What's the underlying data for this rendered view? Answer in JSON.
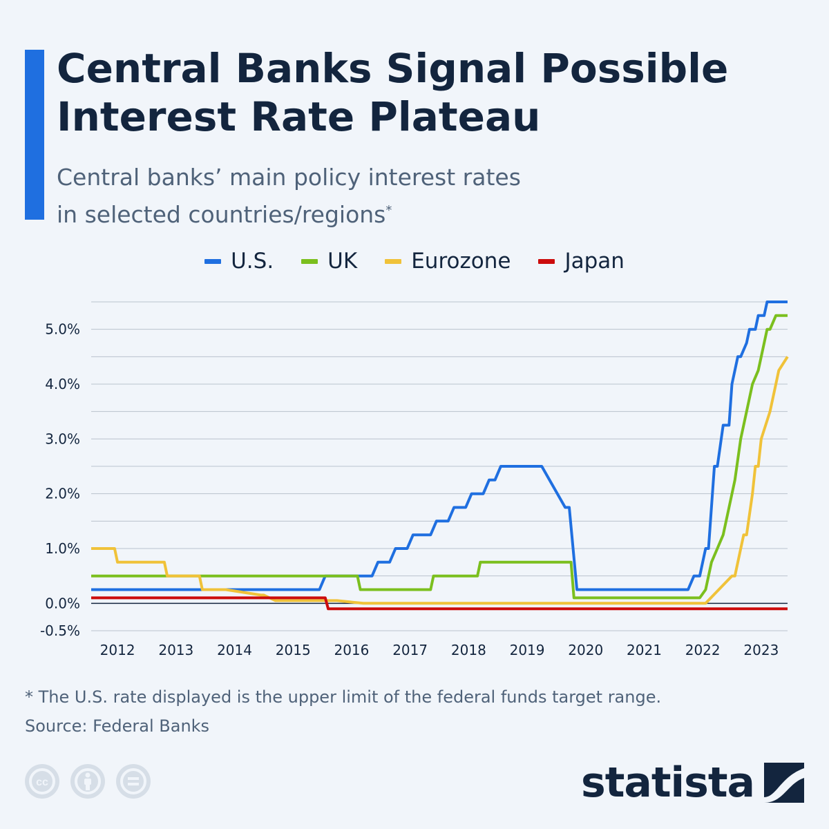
{
  "header": {
    "title": "Central Banks Signal Possible Interest Rate Plateau",
    "subtitle_line1": "Central banks’ main policy interest rates",
    "subtitle_line2": "in selected countries/regions",
    "subtitle_mark": "*"
  },
  "colors": {
    "accent": "#1f6fe0",
    "us": "#1f6fe0",
    "uk": "#7bbf1e",
    "eurozone": "#f0c239",
    "japan": "#cc0c0c",
    "text": "#13253e",
    "background": "#f1f5fa"
  },
  "chart_data": {
    "type": "line",
    "title": "",
    "xlabel": "",
    "ylabel": "",
    "xlim": [
      2011.55,
      2023.45
    ],
    "ylim": [
      -0.5,
      5.5
    ],
    "x_ticks": [
      2012,
      2013,
      2014,
      2015,
      2016,
      2017,
      2018,
      2019,
      2020,
      2021,
      2022,
      2023
    ],
    "x_tick_labels": [
      "2012",
      "2013",
      "2014",
      "2015",
      "2016",
      "2017",
      "2018",
      "2019",
      "2020",
      "2021",
      "2022",
      "2023"
    ],
    "y_ticks": [
      -0.5,
      0,
      1,
      2,
      3,
      4,
      5
    ],
    "y_tick_labels": [
      "-0.5%",
      "0.0%",
      "1.0%",
      "2.0%",
      "3.0%",
      "4.0%",
      "5.0%"
    ],
    "grid": true,
    "legend": "top",
    "series": [
      {
        "name": "U.S.",
        "color": "#1f6fe0",
        "x": [
          2011.55,
          2015.45,
          2015.55,
          2016.35,
          2016.45,
          2016.65,
          2016.75,
          2016.95,
          2017.05,
          2017.35,
          2017.45,
          2017.65,
          2017.75,
          2017.95,
          2018.05,
          2018.25,
          2018.35,
          2018.45,
          2018.55,
          2019.05,
          2019.25,
          2019.65,
          2019.72,
          2019.85,
          2021.65,
          2021.75,
          2021.85,
          2021.95,
          2022.05,
          2022.1,
          2022.2,
          2022.25,
          2022.35,
          2022.45,
          2022.5,
          2022.6,
          2022.65,
          2022.75,
          2022.8,
          2022.9,
          2022.95,
          2023.05,
          2023.1,
          2023.45
        ],
        "values": [
          0.25,
          0.25,
          0.5,
          0.5,
          0.75,
          0.75,
          1.0,
          1.0,
          1.25,
          1.25,
          1.5,
          1.5,
          1.75,
          1.75,
          2.0,
          2.0,
          2.25,
          2.25,
          2.5,
          2.5,
          2.5,
          1.75,
          1.75,
          0.25,
          0.25,
          0.25,
          0.5,
          0.5,
          1.0,
          1.0,
          2.5,
          2.5,
          3.25,
          3.25,
          4.0,
          4.5,
          4.5,
          4.75,
          5.0,
          5.0,
          5.25,
          5.25,
          5.5,
          5.5
        ]
      },
      {
        "name": "UK",
        "color": "#7bbf1e",
        "x": [
          2011.55,
          2015.55,
          2016.05,
          2016.1,
          2016.15,
          2017.3,
          2017.35,
          2017.4,
          2018.1,
          2018.15,
          2018.2,
          2019.2,
          2019.75,
          2019.8,
          2021.95,
          2022.05,
          2022.15,
          2022.25,
          2022.35,
          2022.45,
          2022.55,
          2022.65,
          2022.75,
          2022.85,
          2022.95,
          2023.0,
          2023.1,
          2023.15,
          2023.25,
          2023.3,
          2023.45
        ],
        "values": [
          0.5,
          0.5,
          0.5,
          0.5,
          0.25,
          0.25,
          0.25,
          0.5,
          0.5,
          0.5,
          0.75,
          0.75,
          0.75,
          0.1,
          0.1,
          0.25,
          0.75,
          1.0,
          1.25,
          1.75,
          2.25,
          3.0,
          3.5,
          4.0,
          4.25,
          4.5,
          5.0,
          5.0,
          5.25,
          5.25,
          5.25
        ]
      },
      {
        "name": "Eurozone",
        "color": "#f0c239",
        "x": [
          2011.55,
          2011.95,
          2012.0,
          2012.8,
          2012.85,
          2013.4,
          2013.45,
          2013.85,
          2014.45,
          2014.5,
          2014.7,
          2014.75,
          2015.7,
          2015.75,
          2016.2,
          2016.25,
          2022.05,
          2022.5,
          2022.55,
          2022.7,
          2022.75,
          2022.85,
          2022.9,
          2022.95,
          2023.0,
          2023.15,
          2023.25,
          2023.3,
          2023.45
        ],
        "values": [
          1.0,
          1.0,
          0.75,
          0.75,
          0.5,
          0.5,
          0.25,
          0.25,
          0.15,
          0.15,
          0.05,
          0.05,
          0.05,
          0.05,
          0.0,
          0.0,
          0.0,
          0.5,
          0.5,
          1.25,
          1.25,
          2.0,
          2.5,
          2.5,
          3.0,
          3.5,
          4.0,
          4.25,
          4.5
        ]
      },
      {
        "name": "Japan",
        "color": "#cc0c0c",
        "x": [
          2011.55,
          2015.55,
          2015.6,
          2023.45
        ],
        "values": [
          0.1,
          0.1,
          -0.1,
          -0.1
        ]
      }
    ]
  },
  "footer": {
    "note": "* The U.S. rate displayed is the upper limit of the federal funds target range.",
    "source": "Source: Federal Banks"
  },
  "branding": {
    "logo_text": "statista",
    "license_icons": [
      "creative-commons-icon",
      "attribution-icon",
      "no-derivatives-icon"
    ]
  }
}
